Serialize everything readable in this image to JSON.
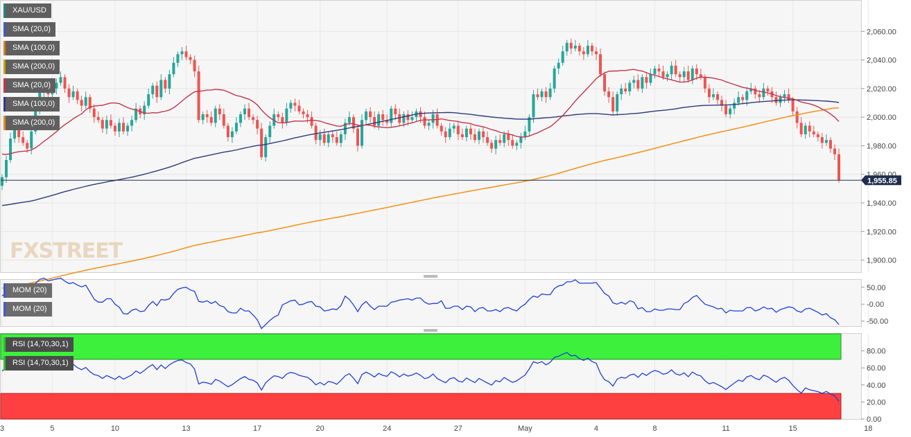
{
  "symbol": "XAU/USD",
  "watermark": {
    "fx": "FX",
    "street": "STREET"
  },
  "legends": {
    "main": [
      {
        "label": "XAU/USD",
        "color": "#1b8a7a"
      },
      {
        "label": "SMA (20,0)",
        "color": "#3b5bd6"
      },
      {
        "label": "SMA (100,0)",
        "color": "#e07a1f"
      },
      {
        "label": "SMA (200,0)",
        "color": "#c9a000"
      },
      {
        "label": "SMA (20,0)",
        "color": "#cc3344"
      },
      {
        "label": "SMA (100,0)",
        "color": "#2b3a8a"
      },
      {
        "label": "SMA (200,0)",
        "color": "#e08a1f"
      }
    ],
    "mom": [
      {
        "label": "MOM (20)",
        "color": "#3b5bd6"
      },
      {
        "label": "MOM (20)",
        "color": "#3b5bd6"
      }
    ],
    "rsi": [
      {
        "label": "RSI (14,70,30,1)",
        "color": "#2fbf2f"
      },
      {
        "label": "RSI (14,70,30,1)",
        "color": "#2fbf2f"
      }
    ]
  },
  "colors": {
    "up": "#26a69a",
    "down": "#ef5350",
    "sma20": "#c2344c",
    "sma100": "#2b3a7a",
    "sma200": "#f0961e",
    "momentum": "#1f3fd6",
    "rsi": "#1f3fd6",
    "overbought": "#3cf03c",
    "oversold": "#ff4040",
    "price_label_bg": "#1f2d4d"
  },
  "chart_data": [
    {
      "type": "candlestick",
      "panel": "price",
      "y_ticks": [
        "2,060.00",
        "2,040.00",
        "2,020.00",
        "2,000.00",
        "1,980.00",
        "1,960.00",
        "1,940.00",
        "1,920.00",
        "1,900.00"
      ],
      "y_tick_values": [
        2060,
        2040,
        2020,
        2000,
        1980,
        1960,
        1940,
        1920,
        1900
      ],
      "ylim": [
        1893,
        2080
      ],
      "last_price": 1955.85,
      "last_price_label": "1,955.85",
      "x_labels": [
        "3",
        "5",
        "10",
        "13",
        "17",
        "20",
        "24",
        "27",
        "May",
        "4",
        "8",
        "11",
        "15",
        "18"
      ],
      "x_label_bars": [
        0,
        12,
        27,
        44,
        61,
        76,
        92,
        109,
        125,
        142,
        156,
        173,
        189,
        207
      ],
      "closes": [
        1958,
        1970,
        1985,
        1992,
        1986,
        1982,
        1978,
        1990,
        2005,
        2018,
        2023,
        2016,
        2020,
        2024,
        2028,
        2020,
        2014,
        2018,
        2012,
        2008,
        2014,
        2006,
        2000,
        1998,
        1992,
        1998,
        1994,
        1990,
        1996,
        1990,
        1994,
        1998,
        2006,
        2002,
        2008,
        2016,
        2022,
        2014,
        2026,
        2020,
        2030,
        2038,
        2044,
        2046,
        2042,
        2040,
        2032,
        1998,
        2002,
        2000,
        1996,
        2006,
        2002,
        1994,
        1986,
        1990,
        1996,
        2002,
        2006,
        2000,
        1998,
        1992,
        1972,
        1986,
        1994,
        2002,
        2000,
        1996,
        2006,
        2010,
        2008,
        2004,
        2002,
        2000,
        1994,
        1984,
        1988,
        1982,
        1988,
        1986,
        1982,
        1988,
        1996,
        2000,
        1992,
        1980,
        1998,
        2004,
        2000,
        1994,
        2002,
        1998,
        1996,
        2006,
        2002,
        1996,
        2002,
        1998,
        2000,
        2004,
        2000,
        1994,
        1996,
        2002,
        1994,
        1990,
        1986,
        1992,
        1994,
        1988,
        1986,
        1992,
        1988,
        1984,
        1990,
        1986,
        1982,
        1978,
        1984,
        1982,
        1988,
        1984,
        1980,
        1982,
        1986,
        1990,
        2000,
        2016,
        2014,
        2018,
        2014,
        2020,
        2034,
        2038,
        2046,
        2052,
        2048,
        2050,
        2046,
        2044,
        2050,
        2046,
        2044,
        2030,
        2018,
        2014,
        2004,
        2016,
        2020,
        2018,
        2024,
        2026,
        2020,
        2028,
        2024,
        2030,
        2034,
        2032,
        2028,
        2030,
        2036,
        2030,
        2028,
        2032,
        2026,
        2034,
        2030,
        2028,
        2020,
        2014,
        2016,
        2012,
        2008,
        2002,
        2006,
        2010,
        2014,
        2012,
        2018,
        2020,
        2016,
        2014,
        2020,
        2018,
        2014,
        2010,
        2014,
        2016,
        2012,
        2004,
        1996,
        1988,
        1994,
        1990,
        1988,
        1986,
        1982,
        1984,
        1978,
        1974,
        1956
      ],
      "mom_ticks": [
        "50.00",
        "-0.00",
        "-50.00"
      ],
      "mom_tick_values": [
        50,
        0,
        -50
      ],
      "rsi_ticks": [
        "80.00",
        "60.00",
        "40.00",
        "20.00",
        "0.00"
      ],
      "rsi_tick_values": [
        80,
        60,
        40,
        20,
        0
      ],
      "rsi_levels": {
        "overbought": 70,
        "oversold": 30
      }
    }
  ]
}
